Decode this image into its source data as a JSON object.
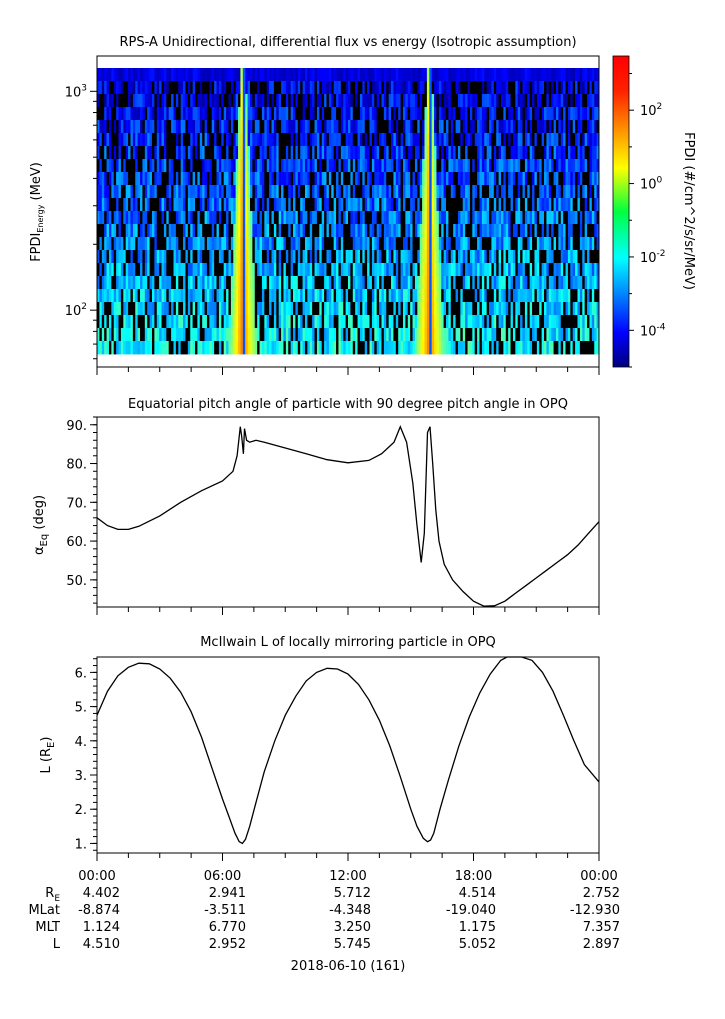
{
  "chart_data": [
    {
      "type": "heatmap",
      "title": "RPS-A Unidirectional, differential flux vs energy (Isotropic assumption)",
      "ylabel_main": "FPDI",
      "ylabel_sub": "Energy",
      "ylabel_unit": "(MeV)",
      "y_scale": "log",
      "ylim": [
        55,
        1450
      ],
      "y_ticks": [
        {
          "value": 100,
          "base": "10",
          "exp": "2"
        },
        {
          "value": 1000,
          "base": "10",
          "exp": "3"
        }
      ],
      "colorbar": {
        "label": "FPDI (#/cm^2/s/sr/MeV)",
        "scale": "log",
        "range": [
          1e-05,
          3000
        ],
        "ticks": [
          {
            "value": 0.0001,
            "base": "10",
            "exp": "-4"
          },
          {
            "value": 0.01,
            "base": "10",
            "exp": "-2"
          },
          {
            "value": 1,
            "base": "10",
            "exp": "0"
          },
          {
            "value": 100,
            "base": "10",
            "exp": "2"
          }
        ]
      },
      "bright_bands_hours": [
        6.98,
        15.9
      ],
      "background_flux": "1e-5 to 1e-2 (noisy, with no-data gaps)",
      "peak_flux_at_band": 10
    },
    {
      "type": "line",
      "title": "Equatorial pitch angle of particle with 90 degree pitch angle in OPQ",
      "ylabel_main": "α",
      "ylabel_sub": "Eq",
      "ylabel_unit": "(deg)",
      "ylim": [
        43,
        92
      ],
      "y_ticks": [
        "50.",
        "60.",
        "70.",
        "80.",
        "90."
      ],
      "x_hours": [
        0,
        0.5,
        1,
        1.5,
        2,
        3,
        4,
        5,
        6,
        6.5,
        6.7,
        6.85,
        6.92,
        7.0,
        7.05,
        7.15,
        7.3,
        7.6,
        8,
        9,
        10,
        11,
        12,
        13,
        13.6,
        14.2,
        14.5,
        14.8,
        15.1,
        15.3,
        15.5,
        15.65,
        15.8,
        15.92,
        16.05,
        16.2,
        16.35,
        16.6,
        17,
        17.5,
        18,
        18.5,
        19,
        19.5,
        20,
        20.5,
        21,
        21.5,
        22,
        22.5,
        23,
        23.5,
        24
      ],
      "y_deg": [
        66,
        64,
        63,
        63,
        63.8,
        66.5,
        70,
        73,
        75.5,
        78,
        82,
        89.5,
        87,
        82.5,
        89,
        86,
        85.5,
        86,
        85.5,
        84,
        82.5,
        81,
        80.2,
        80.8,
        82.5,
        85.5,
        89.5,
        85.5,
        75,
        64,
        54.5,
        62,
        88,
        89.5,
        80,
        68,
        60,
        54,
        50,
        47,
        44.5,
        43.2,
        43.3,
        44.5,
        46.5,
        48.5,
        50.5,
        52.5,
        54.5,
        56.5,
        59,
        62,
        65
      ]
    },
    {
      "type": "line",
      "title": "McIlwain L of locally mirroring particle in OPQ",
      "ylabel_main": "L",
      "ylabel_unit_base": "(R",
      "ylabel_unit_sub": "E",
      "ylim": [
        0.72,
        6.45
      ],
      "y_ticks": [
        "1.",
        "2.",
        "3.",
        "4.",
        "5.",
        "6."
      ],
      "x_hours": [
        0,
        0.5,
        1,
        1.5,
        2,
        2.5,
        3,
        3.5,
        4,
        4.5,
        5,
        5.5,
        6,
        6.3,
        6.6,
        6.8,
        6.95,
        7.1,
        7.3,
        7.6,
        8,
        8.5,
        9,
        9.5,
        10,
        10.5,
        11,
        11.5,
        12,
        12.5,
        13,
        13.5,
        14,
        14.5,
        15,
        15.3,
        15.6,
        15.8,
        15.95,
        16.1,
        16.4,
        16.8,
        17.3,
        17.8,
        18.3,
        18.8,
        19.3,
        19.6,
        20.3,
        20.8,
        21.3,
        21.8,
        22.3,
        22.8,
        23.3,
        24
      ],
      "y": [
        4.75,
        5.45,
        5.9,
        6.15,
        6.27,
        6.25,
        6.1,
        5.83,
        5.42,
        4.85,
        4.1,
        3.2,
        2.3,
        1.8,
        1.3,
        1.05,
        1.0,
        1.12,
        1.5,
        2.2,
        3.1,
        4.0,
        4.75,
        5.3,
        5.75,
        6.0,
        6.12,
        6.1,
        5.95,
        5.65,
        5.2,
        4.6,
        3.85,
        2.95,
        2.0,
        1.5,
        1.15,
        1.05,
        1.1,
        1.3,
        2.0,
        2.85,
        3.85,
        4.7,
        5.4,
        5.95,
        6.35,
        6.45,
        6.45,
        6.35,
        6.0,
        5.45,
        4.75,
        4.0,
        3.3,
        2.8
      ]
    }
  ],
  "x_axis": {
    "tick_labels": [
      "00:00",
      "06:00",
      "12:00",
      "18:00",
      "00:00"
    ],
    "tick_hours": [
      0,
      6,
      12,
      18,
      24
    ],
    "minor_step_hours": 1.5,
    "date_label": "2018-06-10 (161)"
  },
  "ephemeris": {
    "labels": [
      {
        "base": "R",
        "sub": "E"
      },
      {
        "base": "MLat",
        "sub": ""
      },
      {
        "base": "MLT",
        "sub": ""
      },
      {
        "base": "L",
        "sub": ""
      }
    ],
    "rows": [
      [
        "4.402",
        "2.941",
        "5.712",
        "4.514",
        "2.752"
      ],
      [
        "-8.874",
        "-3.511",
        "-4.348",
        "-19.040",
        "-12.930"
      ],
      [
        "1.124",
        "6.770",
        "3.250",
        "1.175",
        "7.357"
      ],
      [
        "4.510",
        "2.952",
        "5.745",
        "5.052",
        "2.897"
      ]
    ]
  },
  "colors": {
    "line": "#000000",
    "nodata": "#000000"
  }
}
